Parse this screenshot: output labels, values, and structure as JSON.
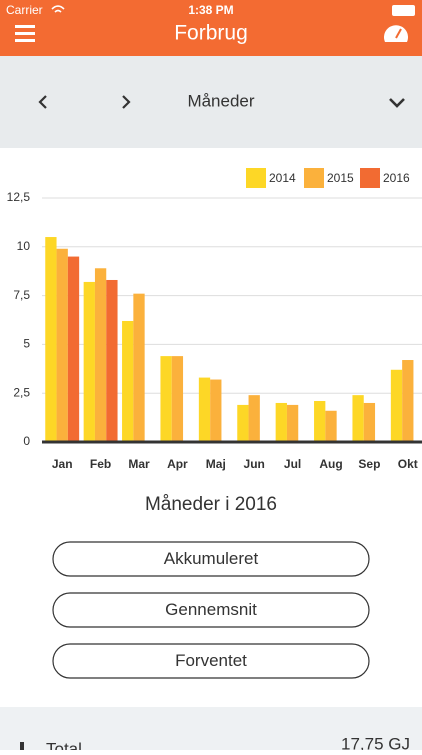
{
  "status_bar": {
    "carrier": "Carrier",
    "time": "1:38 PM"
  },
  "header": {
    "title": "Forbrug"
  },
  "nav": {
    "label": "Måneder"
  },
  "chart_data": {
    "type": "bar",
    "categories": [
      "Jan",
      "Feb",
      "Mar",
      "Apr",
      "Maj",
      "Jun",
      "Jul",
      "Aug",
      "Sep",
      "Okt"
    ],
    "series": [
      {
        "name": "2014",
        "color": "#fdd726",
        "values": [
          10.5,
          8.2,
          6.2,
          4.4,
          3.3,
          1.9,
          2.0,
          2.1,
          2.4,
          3.7
        ]
      },
      {
        "name": "2015",
        "color": "#fbb13c",
        "values": [
          9.9,
          8.9,
          7.6,
          4.4,
          3.2,
          2.4,
          1.9,
          1.6,
          2.0,
          4.2
        ]
      },
      {
        "name": "2016",
        "color": "#f26b32",
        "values": [
          9.5,
          8.3,
          null,
          null,
          null,
          null,
          null,
          null,
          null,
          null
        ]
      }
    ],
    "ylim": [
      0,
      12.5
    ],
    "yticks": [
      0,
      {
        "value": 2.5,
        "label": "2,5"
      },
      5,
      {
        "value": 7.5,
        "label": "7,5"
      },
      10,
      {
        "value": 12.5,
        "label": "12,5"
      }
    ],
    "grid": true,
    "legend": "top-right"
  },
  "subtitle": "Måneder i 2016",
  "buttons": [
    "Akkumuleret",
    "Gennemsnit",
    "Forventet"
  ],
  "summary": {
    "label": "Total",
    "value": "17,75 GJ"
  }
}
